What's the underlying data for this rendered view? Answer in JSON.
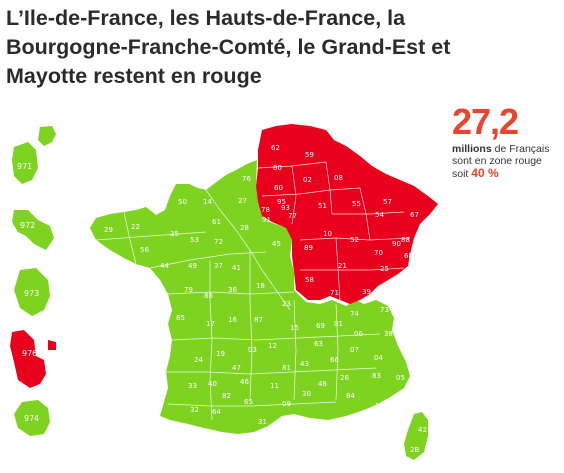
{
  "title_lines": [
    "L’Ile-de-France, les Hauts-de-France, la",
    "Bourgogne-Franche-Comté, le Grand-Est et",
    "Mayotte restent en rouge"
  ],
  "stat": {
    "big_number": "27,2",
    "line1_bold": "millions",
    "line1_rest": " de Français",
    "line2": "sont en zone rouge",
    "line3_prefix": "soit ",
    "percent": "40 %"
  },
  "colors": {
    "green": "#7ed321",
    "red": "#e8001c",
    "accent": "#e8452d"
  },
  "zones": {
    "green": [
      "971",
      "972",
      "973",
      "974"
    ],
    "red": [
      "976"
    ]
  },
  "overseas": [
    "971",
    "972",
    "973",
    "976",
    "974"
  ],
  "departments": {
    "red": [
      "62",
      "59",
      "80",
      "02",
      "08",
      "60",
      "95",
      "78",
      "91",
      "77",
      "93",
      "51",
      "55",
      "57",
      "67",
      "54",
      "88",
      "10",
      "52",
      "89",
      "21",
      "70",
      "90",
      "68",
      "25",
      "58",
      "71",
      "39"
    ],
    "green": [
      "76",
      "50",
      "14",
      "27",
      "29",
      "22",
      "56",
      "35",
      "53",
      "72",
      "61",
      "28",
      "44",
      "49",
      "37",
      "41",
      "45",
      "18",
      "36",
      "86",
      "79",
      "85",
      "17",
      "16",
      "87",
      "23",
      "03",
      "19",
      "24",
      "33",
      "40",
      "47",
      "46",
      "82",
      "32",
      "64",
      "65",
      "31",
      "09",
      "11",
      "81",
      "12",
      "15",
      "63",
      "43",
      "48",
      "30",
      "34",
      "66",
      "07",
      "26",
      "84",
      "13",
      "83",
      "04",
      "05",
      "06",
      "38",
      "73",
      "74",
      "01",
      "69",
      "42",
      "2B",
      "2A"
    ]
  }
}
